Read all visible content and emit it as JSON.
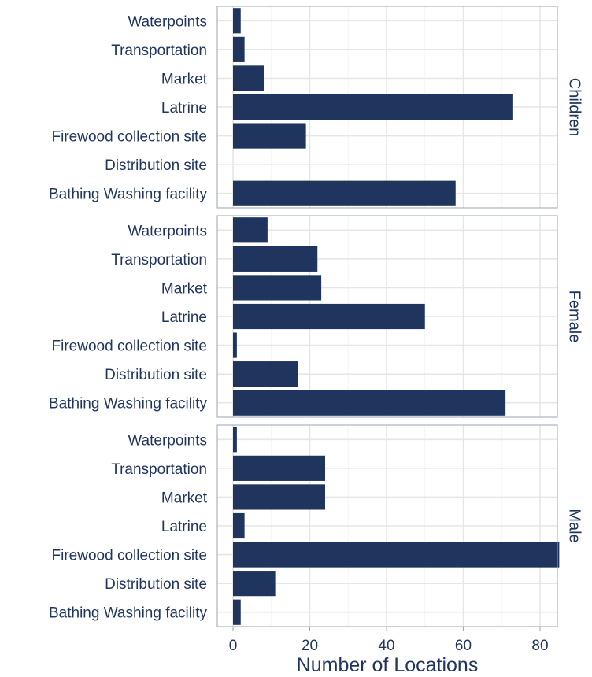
{
  "chart_data": {
    "type": "bar",
    "orientation": "horizontal",
    "xlabel": "Number of Locations",
    "ylabel": "",
    "xlim": [
      0,
      88
    ],
    "x_ticks": [
      0,
      20,
      40,
      60,
      80
    ],
    "grid": true,
    "bar_color": "#1f355e",
    "categories": [
      "Waterpoints",
      "Transportation",
      "Market",
      "Latrine",
      "Firewood collection site",
      "Distribution site",
      "Bathing Washing facility"
    ],
    "panels": [
      {
        "label": "Children",
        "values": [
          2,
          3,
          8,
          73,
          19,
          0,
          58
        ]
      },
      {
        "label": "Female",
        "values": [
          9,
          22,
          23,
          50,
          1,
          17,
          71
        ]
      },
      {
        "label": "Male",
        "values": [
          1,
          24,
          24,
          3,
          85,
          11,
          2
        ]
      }
    ]
  }
}
